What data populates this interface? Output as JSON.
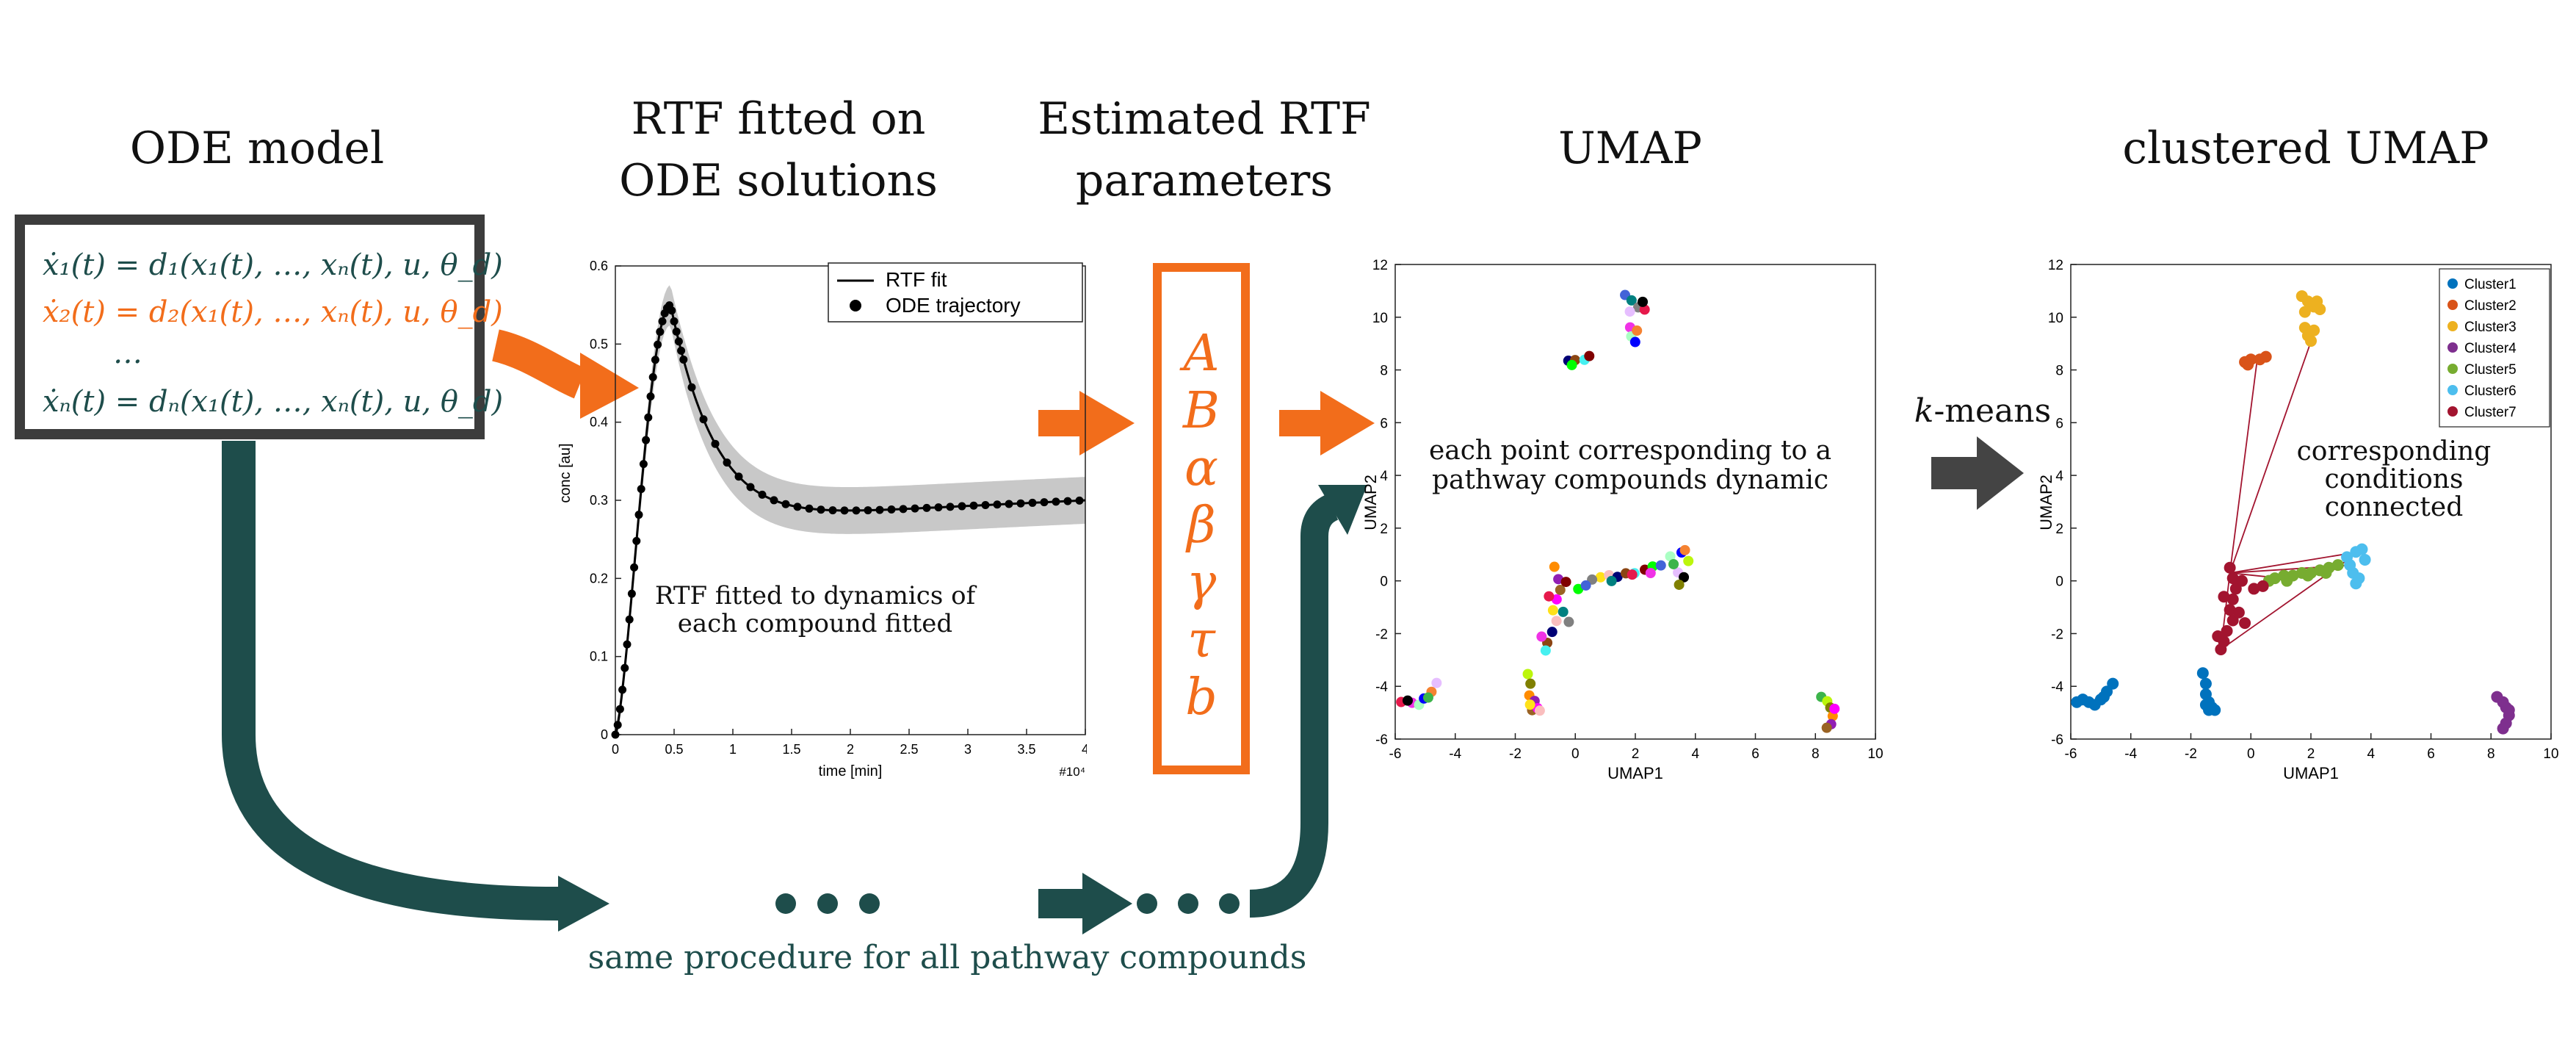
{
  "headings": {
    "ode_model": "ODE model",
    "rtf_fitted": [
      "RTF fitted on",
      "ODE solutions"
    ],
    "estimated": [
      "Estimated RTF",
      "parameters"
    ],
    "umap": "UMAP",
    "clustered": "clustered UMAP"
  },
  "equations": [
    {
      "text": "ẋ₁(t) = d₁(x₁(t), …, xₙ(t), u, θ_d)",
      "color": "#1e4d4b"
    },
    {
      "text": "ẋ₂(t) = d₂(x₁(t), …, xₙ(t), u, θ_d)",
      "color": "#f26d1b"
    },
    {
      "text": "…",
      "color": "#1e4d4b"
    },
    {
      "text": "ẋₙ(t) = dₙ(x₁(t), …, xₙ(t), u, θ_d)",
      "color": "#1e4d4b"
    }
  ],
  "parameters": [
    "A",
    "B",
    "α",
    "β",
    "γ",
    "τ",
    "b"
  ],
  "annotations": {
    "rtf_note": [
      "RTF fitted to dynamics of",
      "each compound fitted"
    ],
    "umap_note": [
      "each point corresponding to a",
      "pathway compounds dynamic"
    ],
    "cluster_note": [
      "corresponding",
      "conditions",
      "connected"
    ],
    "kmeans_k": "k",
    "kmeans_rest": "-means",
    "bottom": "same procedure for all pathway compounds"
  },
  "colors": {
    "teal": "#1e4d4b",
    "orange": "#f26d1b",
    "grey_arrow": "#444444",
    "box": "#3c3c3c"
  },
  "chart_data": [
    {
      "type": "line",
      "xlabel": "time [min]",
      "ylabel": "conc [au]",
      "x_multiplier": "#10⁴",
      "xlim": [
        0,
        4
      ],
      "ylim": [
        0,
        0.6
      ],
      "xticks": [
        "0",
        "0.5",
        "1",
        "1.5",
        "2",
        "2.5",
        "3",
        "3.5",
        "4"
      ],
      "yticks": [
        "0",
        "0.1",
        "0.2",
        "0.3",
        "0.4",
        "0.5",
        "0.6"
      ],
      "legend": [
        "RTF fit",
        "ODE trajectory"
      ],
      "legend_position": "top-right",
      "peak": {
        "x": 0.47,
        "y": 0.55
      },
      "plateau": 0.3
    },
    {
      "type": "scatter",
      "xlabel": "UMAP1",
      "ylabel": "UMAP2",
      "xlim": [
        -6,
        10
      ],
      "ylim": [
        -6,
        12
      ],
      "xticks": [
        "-6",
        "-4",
        "-2",
        "0",
        "2",
        "4",
        "6",
        "8",
        "10"
      ],
      "yticks": [
        "-6",
        "-4",
        "-2",
        "0",
        "2",
        "4",
        "6",
        "8",
        "10",
        "12"
      ]
    },
    {
      "type": "scatter",
      "xlabel": "UMAP1",
      "ylabel": "UMAP2",
      "xlim": [
        -6,
        10
      ],
      "ylim": [
        -6,
        12
      ],
      "xticks": [
        "-6",
        "-4",
        "-2",
        "0",
        "2",
        "4",
        "6",
        "8",
        "10"
      ],
      "yticks": [
        "-6",
        "-4",
        "-2",
        "0",
        "2",
        "4",
        "6",
        "8",
        "10",
        "12"
      ],
      "legend_position": "top-right",
      "series": [
        {
          "name": "Cluster1",
          "color": "#0072bd"
        },
        {
          "name": "Cluster2",
          "color": "#d95319"
        },
        {
          "name": "Cluster3",
          "color": "#edb120"
        },
        {
          "name": "Cluster4",
          "color": "#7e2f8e"
        },
        {
          "name": "Cluster5",
          "color": "#77ac30"
        },
        {
          "name": "Cluster6",
          "color": "#4dbeee"
        },
        {
          "name": "Cluster7",
          "color": "#a2142f"
        }
      ]
    }
  ]
}
